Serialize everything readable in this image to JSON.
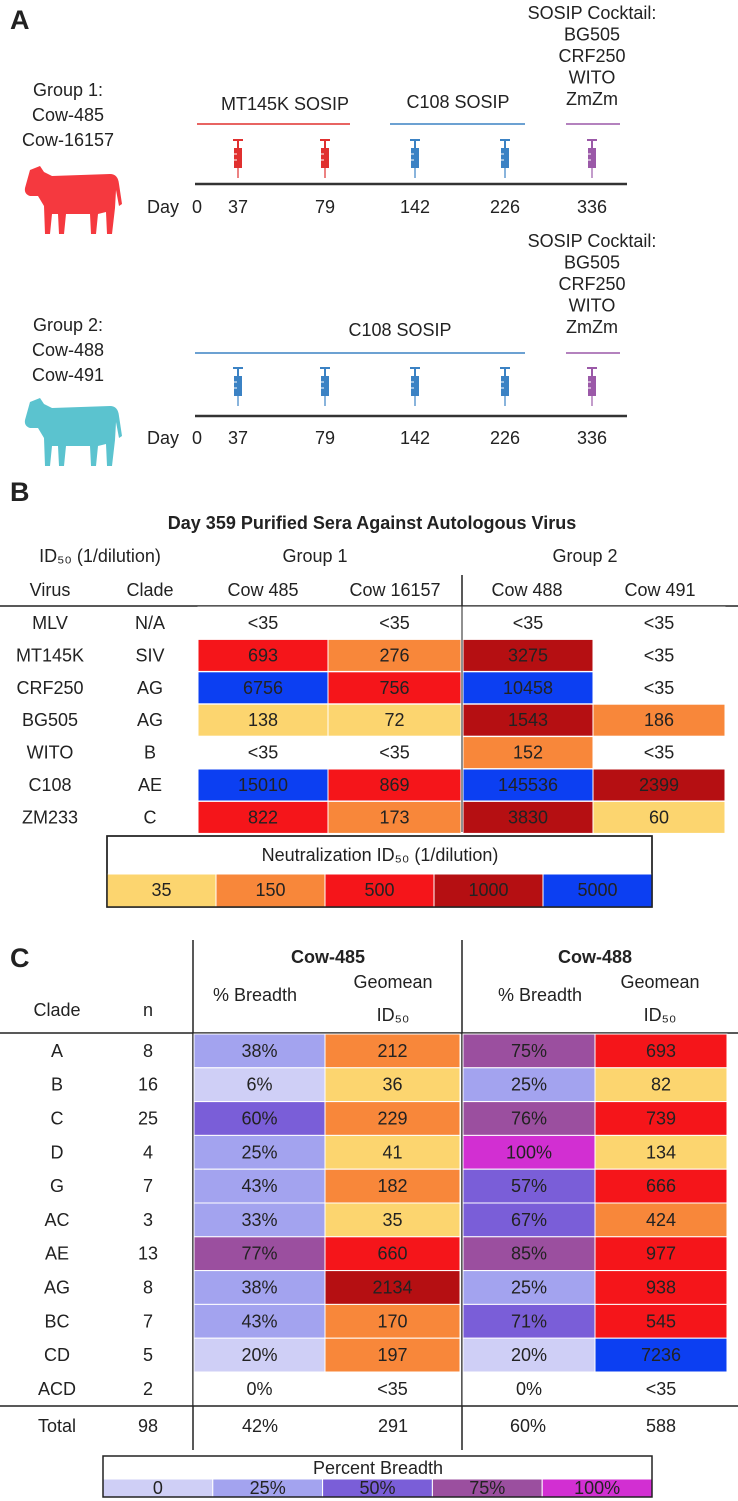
{
  "panel_a": {
    "label": "A",
    "groups": [
      {
        "lines": [
          "Group 1:",
          "Cow-485",
          "Cow-16157"
        ],
        "cow_color": "#f5393f",
        "phases": [
          {
            "label": "MT145K SOSIP",
            "color": "#e0302f"
          },
          {
            "label": "C108 SOSIP",
            "color": "#3b82c4"
          }
        ],
        "cocktail": {
          "lines": [
            "SOSIP Cocktail:",
            "BG505",
            "CRF250",
            "WITO",
            "ZmZm"
          ],
          "color": "#9b59a8"
        },
        "day_label": "Day",
        "days": [
          {
            "label": "0",
            "color": "#222222"
          },
          {
            "label": "37",
            "color": "#e0302f"
          },
          {
            "label": "79",
            "color": "#e0302f"
          },
          {
            "label": "142",
            "color": "#3b82c4"
          },
          {
            "label": "226",
            "color": "#3b82c4"
          },
          {
            "label": "336",
            "color": "#9b59a8"
          }
        ]
      },
      {
        "lines": [
          "Group 2:",
          "Cow-488",
          "Cow-491"
        ],
        "cow_color": "#5bc3cf",
        "phases": [
          {
            "label": "C108 SOSIP",
            "color": "#3b82c4"
          }
        ],
        "cocktail": {
          "lines": [
            "SOSIP Cocktail:",
            "BG505",
            "CRF250",
            "WITO",
            "ZmZm"
          ],
          "color": "#9b59a8"
        },
        "day_label": "Day",
        "days": [
          {
            "label": "0",
            "color": "#222222"
          },
          {
            "label": "37",
            "color": "#3b82c4"
          },
          {
            "label": "79",
            "color": "#3b82c4"
          },
          {
            "label": "142",
            "color": "#3b82c4"
          },
          {
            "label": "226",
            "color": "#3b82c4"
          },
          {
            "label": "336",
            "color": "#9b59a8"
          }
        ]
      }
    ]
  },
  "panel_b": {
    "label": "B",
    "title": "Day 359 Purified Sera Against Autologous Virus",
    "unit_label": "ID₅₀ (1/dilution)",
    "groups": [
      "Group 1",
      "Group 2"
    ],
    "columns": [
      "Virus",
      "Clade",
      "Cow 485",
      "Cow 16157",
      "Cow 488",
      "Cow 491"
    ],
    "rows": [
      [
        "MLV",
        "N/A",
        "<35",
        "<35",
        "<35",
        "<35"
      ],
      [
        "MT145K",
        "SIV",
        "693",
        "276",
        "3275",
        "<35"
      ],
      [
        "CRF250",
        "AG",
        "6756",
        "756",
        "10458",
        "<35"
      ],
      [
        "BG505",
        "AG",
        "138",
        "72",
        "1543",
        "186"
      ],
      [
        "WITO",
        "B",
        "<35",
        "<35",
        "152",
        "<35"
      ],
      [
        "C108",
        "AE",
        "15010",
        "869",
        "145536",
        "2399"
      ],
      [
        "ZM233",
        "C",
        "822",
        "173",
        "3830",
        "60"
      ]
    ],
    "cell_colors": [
      [
        "#ffffff",
        "#ffffff",
        "#ffffff",
        "#ffffff"
      ],
      [
        "#f5151a",
        "#f8873a",
        "#b50f12",
        "#ffffff"
      ],
      [
        "#0c3ff2",
        "#f5151a",
        "#0c3ff2",
        "#ffffff"
      ],
      [
        "#fcd56f",
        "#fcd56f",
        "#b50f12",
        "#f8873a"
      ],
      [
        "#ffffff",
        "#ffffff",
        "#f8873a",
        "#ffffff"
      ],
      [
        "#0c3ff2",
        "#f5151a",
        "#0c3ff2",
        "#b50f12"
      ],
      [
        "#f5151a",
        "#f8873a",
        "#b50f12",
        "#fcd56f"
      ]
    ],
    "legend": {
      "title": "Neutralization ID₅₀ (1/dilution)",
      "bins": [
        "35",
        "150",
        "500",
        "1000",
        "5000"
      ],
      "colors": [
        "#fcd56f",
        "#f8873a",
        "#f5151a",
        "#b50f12",
        "#0c3ff2"
      ]
    }
  },
  "panel_c": {
    "label": "C",
    "cows": [
      "Cow-485",
      "Cow-488"
    ],
    "columns": [
      "Clade",
      "n"
    ],
    "subcolumns": [
      "% Breadth",
      "Geomean",
      "ID₅₀"
    ],
    "rows": [
      [
        "A",
        "8",
        "38%",
        "212",
        "75%",
        "693"
      ],
      [
        "B",
        "16",
        "6%",
        "36",
        "25%",
        "82"
      ],
      [
        "C",
        "25",
        "60%",
        "229",
        "76%",
        "739"
      ],
      [
        "D",
        "4",
        "25%",
        "41",
        "100%",
        "134"
      ],
      [
        "G",
        "7",
        "43%",
        "182",
        "57%",
        "666"
      ],
      [
        "AC",
        "3",
        "33%",
        "35",
        "67%",
        "424"
      ],
      [
        "AE",
        "13",
        "77%",
        "660",
        "85%",
        "977"
      ],
      [
        "AG",
        "8",
        "38%",
        "2134",
        "25%",
        "938"
      ],
      [
        "BC",
        "7",
        "43%",
        "170",
        "71%",
        "545"
      ],
      [
        "CD",
        "5",
        "20%",
        "197",
        "20%",
        "7236"
      ],
      [
        "ACD",
        "2",
        "0%",
        "<35",
        "0%",
        "<35"
      ]
    ],
    "cell_colors": [
      [
        "#a3a3ef",
        "#f8873a",
        "#9b4f9f",
        "#f5151a"
      ],
      [
        "#cfcff6",
        "#fcd56f",
        "#a3a3ef",
        "#fcd56f"
      ],
      [
        "#7a5ed8",
        "#f8873a",
        "#9b4f9f",
        "#f5151a"
      ],
      [
        "#a3a3ef",
        "#fcd56f",
        "#d22fd2",
        "#fcd56f"
      ],
      [
        "#a3a3ef",
        "#f8873a",
        "#7a5ed8",
        "#f5151a"
      ],
      [
        "#a3a3ef",
        "#fcd56f",
        "#7a5ed8",
        "#f8873a"
      ],
      [
        "#9b4f9f",
        "#f5151a",
        "#9b4f9f",
        "#f5151a"
      ],
      [
        "#a3a3ef",
        "#b50f12",
        "#a3a3ef",
        "#f5151a"
      ],
      [
        "#a3a3ef",
        "#f8873a",
        "#7a5ed8",
        "#f5151a"
      ],
      [
        "#cfcff6",
        "#f8873a",
        "#cfcff6",
        "#0c3ff2"
      ],
      [
        "#ffffff",
        "#ffffff",
        "#ffffff",
        "#ffffff"
      ]
    ],
    "total": [
      "Total",
      "98",
      "42%",
      "291",
      "60%",
      "588"
    ],
    "legend": {
      "title": "Percent Breadth",
      "bins": [
        "0",
        "25%",
        "50%",
        "75%",
        "100%"
      ],
      "colors": [
        "#cfcff6",
        "#a3a3ef",
        "#7a5ed8",
        "#9b4f9f",
        "#d22fd2"
      ]
    }
  }
}
